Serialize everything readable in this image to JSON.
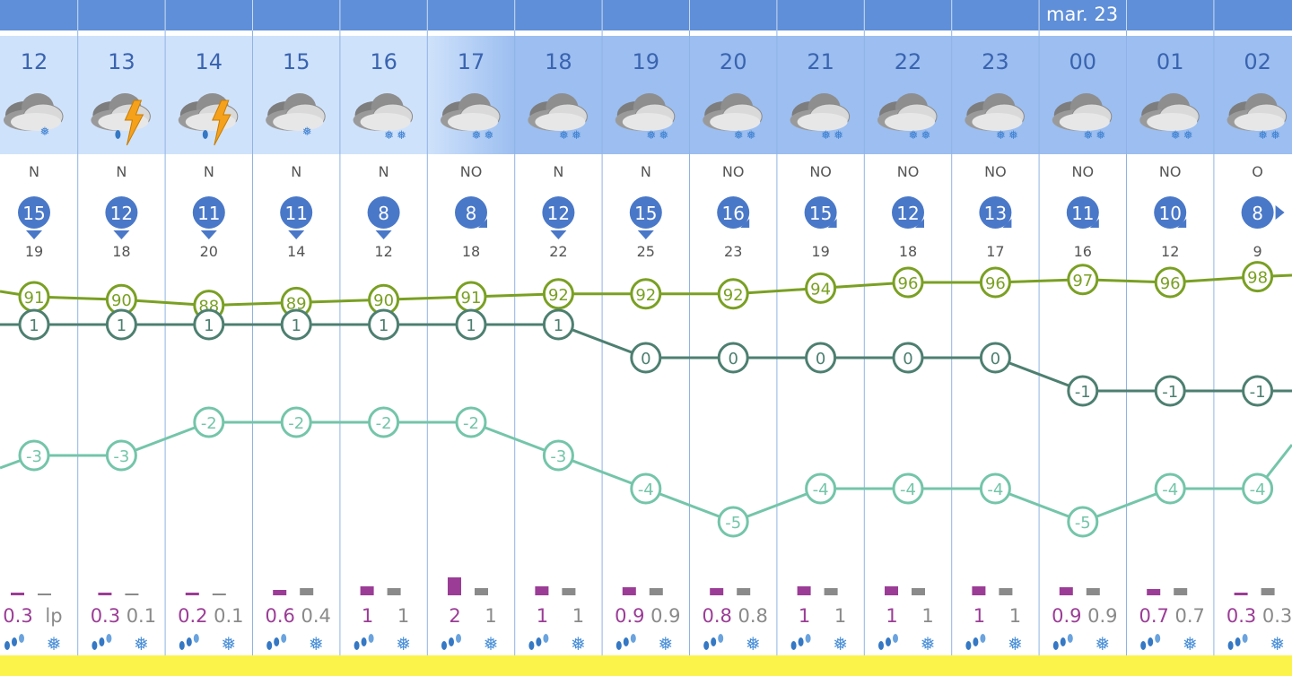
{
  "date_label": "mar. 23",
  "colors": {
    "top_bar": "#5f8fd8",
    "header_past": "#cfe2fb",
    "header_future": "#9cbef0",
    "wind_badge": "#4a78c8",
    "humidity_line": "#7aa023",
    "temp_line": "#4d7f70",
    "dewpoint_line": "#74c5aa",
    "rain_bar": "#9b3d96",
    "snow_bar": "#8a8a8a",
    "rain_text": "#9b3d96",
    "snow_text": "#8a8a8a",
    "bottom_band": "#fbf34a"
  },
  "chart_data": {
    "type": "line",
    "x": [
      "12",
      "13",
      "14",
      "15",
      "16",
      "17",
      "18",
      "19",
      "20",
      "21",
      "22",
      "23",
      "00",
      "01",
      "02"
    ],
    "icons": [
      "snow-cloud-icon",
      "storm-icon",
      "storm-icon",
      "snow-cloud-icon",
      "snow-cloud-icon",
      "snow-cloud-icon",
      "snow-cloud-icon",
      "snow-cloud-icon",
      "snow-cloud-icon",
      "snow-cloud-icon",
      "snow-cloud-icon",
      "snow-cloud-icon",
      "snow-cloud-icon",
      "snow-cloud-icon",
      "snow-cloud-icon"
    ],
    "wind_dir": [
      "N",
      "N",
      "N",
      "N",
      "N",
      "NO",
      "N",
      "N",
      "NO",
      "NO",
      "NO",
      "NO",
      "NO",
      "NO",
      "O"
    ],
    "wind_speed": [
      "15",
      "12",
      "11",
      "11",
      "8",
      "8",
      "12",
      "15",
      "16",
      "15",
      "12",
      "13",
      "11",
      "10",
      "8"
    ],
    "wind_gust": [
      "19",
      "18",
      "20",
      "14",
      "12",
      "18",
      "22",
      "25",
      "23",
      "19",
      "18",
      "17",
      "16",
      "12",
      "9"
    ],
    "series": [
      {
        "key": "humidity",
        "values": [
          91,
          90,
          88,
          89,
          90,
          91,
          92,
          92,
          92,
          94,
          96,
          96,
          97,
          96,
          98
        ]
      },
      {
        "key": "temperature",
        "values": [
          1,
          1,
          1,
          1,
          1,
          1,
          1,
          0,
          0,
          0,
          0,
          0,
          -1,
          -1,
          -1
        ]
      },
      {
        "key": "dewpoint",
        "values": [
          -3,
          -3,
          -2,
          -2,
          -2,
          -2,
          -3,
          -4,
          -5,
          -4,
          -4,
          -4,
          -5,
          -4,
          -4
        ]
      }
    ],
    "rain_amount": [
      "0.3",
      "0.3",
      "0.2",
      "0.6",
      "1",
      "2",
      "1",
      "0.9",
      "0.8",
      "1",
      "1",
      "1",
      "0.9",
      "0.7",
      "0.3"
    ],
    "snow_amount": [
      "lp",
      "0.1",
      "0.1",
      "0.4",
      "1",
      "1",
      "1",
      "0.9",
      "0.8",
      "1",
      "1",
      "1",
      "0.9",
      "0.7",
      "0.3"
    ],
    "rain_values": [
      0.3,
      0.3,
      0.2,
      0.6,
      1,
      2,
      1,
      0.9,
      0.8,
      1,
      1,
      1,
      0.9,
      0.7,
      0.3
    ],
    "snow_values": [
      0,
      0.1,
      0.1,
      0.4,
      1,
      1,
      1,
      0.9,
      0.8,
      1,
      1,
      1,
      0.9,
      0.7,
      0.3
    ]
  }
}
